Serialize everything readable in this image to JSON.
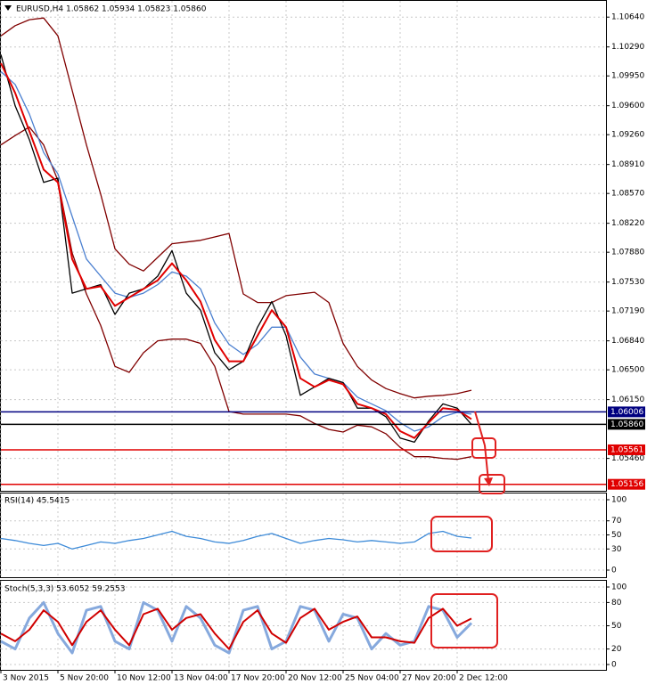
{
  "chart_data": [
    {
      "type": "line",
      "title": "EURUSD,H4  1.05862 1.05934 1.05823 1.05860",
      "x": [
        0,
        4,
        8,
        12,
        16,
        20,
        24,
        28,
        32,
        36,
        40,
        44,
        48,
        52,
        56,
        60,
        64,
        68,
        72,
        76,
        80,
        84,
        88,
        92,
        96,
        100,
        104,
        108,
        112,
        116,
        120,
        124,
        128,
        132
      ],
      "xlim": [
        -0.25,
        169.75
      ],
      "ylim": [
        1.0509,
        1.1082
      ],
      "grid": true,
      "yticks": [
        {
          "value": 1.1064,
          "label": "1.10640"
        },
        {
          "value": 1.1029,
          "label": "1.10290"
        },
        {
          "value": 1.0995,
          "label": "1.09950"
        },
        {
          "value": 1.096,
          "label": "1.09600"
        },
        {
          "value": 1.0926,
          "label": "1.09260"
        },
        {
          "value": 1.0891,
          "label": "1.08910"
        },
        {
          "value": 1.0857,
          "label": "1.08570"
        },
        {
          "value": 1.0822,
          "label": "1.08220"
        },
        {
          "value": 1.0788,
          "label": "1.07880"
        },
        {
          "value": 1.0753,
          "label": "1.07530"
        },
        {
          "value": 1.0719,
          "label": "1.07190"
        },
        {
          "value": 1.0684,
          "label": "1.06840"
        },
        {
          "value": 1.065,
          "label": "1.06500"
        },
        {
          "value": 1.0615,
          "label": "1.06150"
        },
        {
          "value": 1.0546,
          "label": "1.05460"
        }
      ],
      "series": [
        {
          "color": "#800000",
          "values": [
            1.1042,
            1.1054,
            1.1061,
            1.1063,
            1.1042,
            1.0978,
            1.0914,
            1.0856,
            1.0792,
            1.0774,
            1.0766,
            1.0782,
            1.0798,
            1.08,
            1.0802,
            1.0806,
            1.081,
            1.0739,
            1.0729,
            1.0729,
            1.0737,
            1.0739,
            1.0741,
            1.0729,
            1.0681,
            1.0654,
            1.0638,
            1.0628,
            1.0622,
            1.0617,
            1.0619,
            1.062,
            1.0622,
            1.0626
          ]
        },
        {
          "color": "#800000",
          "values": [
            1.0914,
            1.0925,
            1.0935,
            1.0914,
            1.0872,
            1.0787,
            1.0739,
            1.0702,
            1.0654,
            1.0647,
            1.067,
            1.0684,
            1.0686,
            1.0686,
            1.0681,
            1.0654,
            1.0601,
            1.0598,
            1.0598,
            1.0598,
            1.0598,
            1.0596,
            1.0587,
            1.058,
            1.0577,
            1.0585,
            1.0583,
            1.0575,
            1.0559,
            1.0548,
            1.0548,
            1.0546,
            1.0545,
            1.0548
          ]
        },
        {
          "color": "#4a7fd0",
          "values": [
            1.1,
            1.0985,
            1.095,
            1.0905,
            1.088,
            1.083,
            1.078,
            1.076,
            1.074,
            1.0735,
            1.074,
            1.075,
            1.0765,
            1.076,
            1.0745,
            1.0705,
            1.068,
            1.0668,
            1.068,
            1.07,
            1.07,
            1.0665,
            1.0645,
            1.064,
            1.0635,
            1.0618,
            1.061,
            1.0602,
            1.0588,
            1.0578,
            1.0583,
            1.0595,
            1.06,
            1.0598
          ]
        },
        {
          "color": "#000000",
          "values": [
            1.102,
            1.096,
            1.092,
            1.087,
            1.0875,
            1.074,
            1.0745,
            1.075,
            1.0715,
            1.074,
            1.0745,
            1.076,
            1.079,
            1.074,
            1.072,
            1.067,
            1.065,
            1.066,
            1.07,
            1.073,
            1.069,
            1.062,
            1.063,
            1.064,
            1.0635,
            1.0605,
            1.0605,
            1.0595,
            1.057,
            1.0565,
            1.059,
            1.061,
            1.0605,
            1.0586
          ]
        },
        {
          "color": "#e00000",
          "values": [
            1.101,
            1.0975,
            1.093,
            1.0885,
            1.087,
            1.078,
            1.0745,
            1.0748,
            1.0725,
            1.0735,
            1.0745,
            1.0755,
            1.0775,
            1.0755,
            1.073,
            1.0685,
            1.066,
            1.066,
            1.069,
            1.072,
            1.07,
            1.064,
            1.063,
            1.0638,
            1.0633,
            1.061,
            1.0605,
            1.0598,
            1.0578,
            1.057,
            1.0588,
            1.0605,
            1.0603,
            1.0592
          ]
        }
      ],
      "levels": [
        {
          "value": 1.06006,
          "color": "#000080"
        },
        {
          "value": 1.0586,
          "label": "1.05860",
          "color": "#000000"
        },
        {
          "value": 1.05561,
          "color": "#e00000"
        },
        {
          "value": 1.05156,
          "color": "#e00000"
        }
      ]
    },
    {
      "type": "line",
      "title": "RSI(14) 45.5415",
      "x": [
        0,
        4,
        8,
        12,
        16,
        20,
        24,
        28,
        32,
        36,
        40,
        44,
        48,
        52,
        56,
        60,
        64,
        68,
        72,
        76,
        80,
        84,
        88,
        92,
        96,
        100,
        104,
        108,
        112,
        116,
        120,
        124,
        128,
        132
      ],
      "xlim": [
        -0.25,
        169.75
      ],
      "ylim": [
        0,
        100
      ],
      "yticks": [
        0,
        30,
        50,
        70,
        100
      ],
      "grid": true,
      "series": [
        {
          "color": "#3c8ad8",
          "values": [
            45,
            42,
            38,
            35,
            38,
            30,
            35,
            40,
            38,
            42,
            45,
            50,
            55,
            48,
            45,
            40,
            38,
            42,
            48,
            52,
            45,
            38,
            42,
            45,
            43,
            40,
            42,
            40,
            38,
            40,
            52,
            55,
            48,
            45.5415
          ]
        }
      ]
    },
    {
      "type": "line",
      "title": "Stoch(5,3,3) 53.6052 59.2553",
      "x": [
        0,
        4,
        8,
        12,
        16,
        20,
        24,
        28,
        32,
        36,
        40,
        44,
        48,
        52,
        56,
        60,
        64,
        68,
        72,
        76,
        80,
        84,
        88,
        92,
        96,
        100,
        104,
        108,
        112,
        116,
        120,
        124,
        128,
        132
      ],
      "xlim": [
        -0.25,
        169.75
      ],
      "ylim": [
        0,
        100
      ],
      "yticks": [
        0,
        20,
        50,
        80,
        100
      ],
      "grid": true,
      "xticks": [
        {
          "value": 0,
          "label": "3 Nov 2015"
        },
        {
          "value": 16,
          "label": "5 Nov 20:00"
        },
        {
          "value": 32,
          "label": "10 Nov 12:00"
        },
        {
          "value": 48,
          "label": "13 Nov 04:00"
        },
        {
          "value": 64,
          "label": "17 Nov 20:00"
        },
        {
          "value": 80,
          "label": "20 Nov 12:00"
        },
        {
          "value": 96,
          "label": "25 Nov 04:00"
        },
        {
          "value": 112,
          "label": "27 Nov 20:00"
        },
        {
          "value": 128,
          "label": "2 Dec 12:00"
        }
      ],
      "series": [
        {
          "color": "#86a9dd",
          "values": [
            30,
            20,
            60,
            80,
            40,
            15,
            70,
            75,
            30,
            20,
            80,
            70,
            30,
            75,
            60,
            25,
            15,
            70,
            75,
            20,
            30,
            75,
            70,
            30,
            65,
            60,
            20,
            40,
            25,
            30,
            75,
            70,
            35,
            53.6052
          ]
        },
        {
          "color": "#d00000",
          "values": [
            40,
            30,
            45,
            70,
            55,
            25,
            55,
            70,
            45,
            25,
            65,
            72,
            45,
            60,
            65,
            40,
            20,
            55,
            70,
            40,
            28,
            60,
            72,
            45,
            55,
            62,
            35,
            35,
            30,
            28,
            60,
            72,
            50,
            59.2553
          ]
        }
      ]
    }
  ]
}
